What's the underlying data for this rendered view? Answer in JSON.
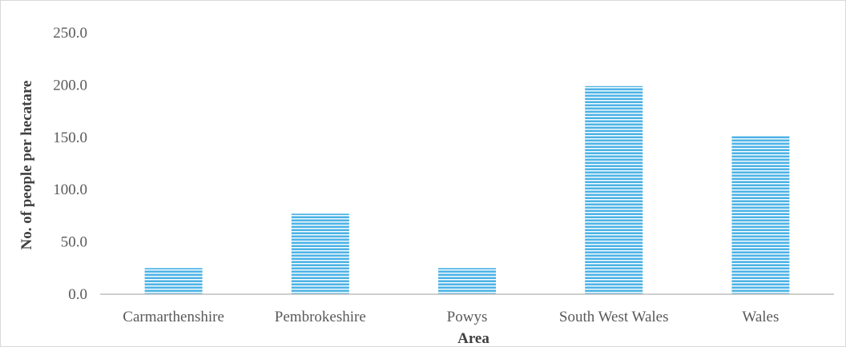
{
  "chart_data": {
    "type": "bar",
    "categories": [
      "Carmarthenshire",
      "Pembrokeshire",
      "Powys",
      "South West Wales",
      "Wales"
    ],
    "values": [
      25.0,
      77.0,
      25.0,
      199.0,
      151.0
    ],
    "xlabel": "Area",
    "ylabel": "No. of people per hecatare",
    "ylim": [
      0,
      250
    ],
    "yticks": [
      "0.0",
      "50.0",
      "100.0",
      "150.0",
      "200.0",
      "250.0"
    ],
    "grid": false,
    "legend": "none",
    "bar_color": "#4db3e6",
    "bar_stripe_color": "#ffffff",
    "axis_color": "#bfbfbf"
  }
}
